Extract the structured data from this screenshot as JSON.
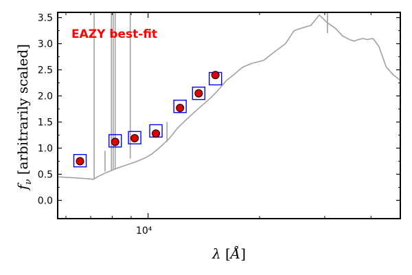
{
  "chart_data": {
    "type": "scatter",
    "title": "",
    "xscale": "log",
    "xlim": [
      5700,
      48000
    ],
    "ylim": [
      -0.35,
      3.6
    ],
    "xticks": [
      {
        "value": 10000,
        "label": "10⁴"
      }
    ],
    "yticks": [
      {
        "value": 0.0,
        "label": "0.0"
      },
      {
        "value": 0.5,
        "label": "0.5"
      },
      {
        "value": 1.0,
        "label": "1.0"
      },
      {
        "value": 1.5,
        "label": "1.5"
      },
      {
        "value": 2.0,
        "label": "2.0"
      },
      {
        "value": 2.5,
        "label": "2.5"
      },
      {
        "value": 3.0,
        "label": "3.0"
      },
      {
        "value": 3.5,
        "label": "3.5"
      }
    ],
    "annotation": {
      "text": "EAZY best-fit",
      "color": "#ff0000"
    },
    "xlabel_parts": {
      "symbol": "λ",
      "open": " [",
      "unit": "Å",
      "close": "]"
    },
    "ylabel_parts": {
      "symbol": "f",
      "subscript": "ν",
      "text": " [arbitrarily scaled]"
    },
    "grid": false,
    "series": [
      {
        "kind": "model_line",
        "color": "#a0a0a0",
        "x": [
          5700,
          6400,
          7000,
          7100,
          7300,
          7700,
          8150,
          8600,
          9200,
          9800,
          10200,
          10700,
          11400,
          12000,
          12700,
          13300,
          14000,
          14800,
          15500,
          16300,
          17000,
          18000,
          19000,
          20500,
          22000,
          23500,
          24800,
          26000,
          27500,
          29000,
          30500,
          32000,
          33500,
          35000,
          36000,
          37000,
          38000,
          39000,
          40500,
          42000,
          44000,
          46000,
          48000
        ],
        "y": [
          0.45,
          0.43,
          0.41,
          0.4,
          0.45,
          0.53,
          0.6,
          0.66,
          0.73,
          0.81,
          0.88,
          1.0,
          1.18,
          1.38,
          1.55,
          1.68,
          1.82,
          1.97,
          2.12,
          2.3,
          2.4,
          2.55,
          2.62,
          2.68,
          2.85,
          3.0,
          3.25,
          3.3,
          3.35,
          3.55,
          3.4,
          3.3,
          3.15,
          3.08,
          3.05,
          3.08,
          3.1,
          3.08,
          3.1,
          2.95,
          2.55,
          2.4,
          2.3
        ]
      },
      {
        "kind": "emission_lines",
        "color": "#a0a0a0",
        "lines": [
          {
            "x": 7150,
            "y0": 0.4,
            "y1": 3.6
          },
          {
            "x": 7650,
            "y0": 0.55,
            "y1": 0.95
          },
          {
            "x": 7960,
            "y0": 0.58,
            "y1": 3.6
          },
          {
            "x": 8050,
            "y0": 0.59,
            "y1": 3.6
          },
          {
            "x": 8150,
            "y0": 0.6,
            "y1": 3.6
          },
          {
            "x": 8950,
            "y0": 0.8,
            "y1": 3.6
          },
          {
            "x": 11250,
            "y0": 1.12,
            "y1": 1.5
          },
          {
            "x": 30500,
            "y0": 3.2,
            "y1": 3.6
          }
        ]
      },
      {
        "kind": "model_photometry",
        "marker": "square",
        "edgecolor": "#0000ff",
        "x": [
          6550,
          8150,
          9200,
          10500,
          12200,
          13700,
          15200
        ],
        "y": [
          0.76,
          1.14,
          1.2,
          1.33,
          1.8,
          2.05,
          2.33
        ]
      },
      {
        "kind": "observed_photometry",
        "marker": "circle",
        "color": "#dd0000",
        "x": [
          6550,
          8150,
          9200,
          10500,
          12200,
          13700,
          15200
        ],
        "y": [
          0.75,
          1.12,
          1.19,
          1.28,
          1.77,
          2.05,
          2.4
        ]
      }
    ]
  }
}
